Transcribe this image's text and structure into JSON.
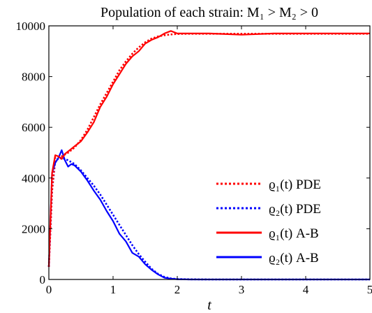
{
  "chart_data": {
    "type": "line",
    "title": "Population of each strain: M₁ > M₂ > 0",
    "xlabel": "t",
    "ylabel": "",
    "xlim": [
      0,
      5
    ],
    "ylim": [
      0,
      10000
    ],
    "x_ticks": [
      0,
      1,
      2,
      3,
      4,
      5
    ],
    "y_ticks": [
      0,
      2000,
      4000,
      6000,
      8000,
      10000
    ],
    "grid": false,
    "legend_position": "bottom-right",
    "series": [
      {
        "name": "ϱ₁(t) PDE",
        "color": "#ff0000",
        "style": "dotted",
        "x": [
          0,
          0.05,
          0.1,
          0.2,
          0.3,
          0.4,
          0.5,
          0.6,
          0.7,
          0.8,
          0.9,
          1.0,
          1.1,
          1.2,
          1.3,
          1.4,
          1.5,
          1.6,
          1.7,
          1.8,
          1.9,
          2.0,
          2.2,
          2.5,
          3.0,
          3.5,
          4.0,
          4.5,
          5.0
        ],
        "y": [
          500,
          3500,
          4800,
          4850,
          5000,
          5200,
          5500,
          5900,
          6400,
          6900,
          7350,
          7800,
          8250,
          8600,
          8900,
          9150,
          9350,
          9500,
          9580,
          9630,
          9660,
          9680,
          9690,
          9690,
          9690,
          9690,
          9690,
          9690,
          9690
        ]
      },
      {
        "name": "ϱ₂(t) PDE",
        "color": "#0000ff",
        "style": "dotted",
        "x": [
          0,
          0.05,
          0.1,
          0.2,
          0.3,
          0.4,
          0.5,
          0.6,
          0.7,
          0.8,
          0.9,
          1.0,
          1.1,
          1.2,
          1.3,
          1.4,
          1.5,
          1.6,
          1.7,
          1.8,
          1.9,
          2.0,
          2.2,
          2.5,
          3.0,
          3.5,
          4.0,
          4.5,
          5.0
        ],
        "y": [
          500,
          3500,
          4700,
          4800,
          4700,
          4550,
          4300,
          4000,
          3700,
          3350,
          2950,
          2550,
          2150,
          1750,
          1350,
          1000,
          700,
          420,
          220,
          100,
          40,
          15,
          5,
          0,
          0,
          0,
          0,
          0,
          0
        ]
      },
      {
        "name": "ϱ₁(t) A-B",
        "color": "#ff0000",
        "style": "solid",
        "x": [
          0,
          0.05,
          0.1,
          0.15,
          0.2,
          0.25,
          0.3,
          0.35,
          0.4,
          0.5,
          0.6,
          0.7,
          0.8,
          0.9,
          1.0,
          1.1,
          1.2,
          1.3,
          1.4,
          1.5,
          1.6,
          1.7,
          1.8,
          1.9,
          2.0,
          2.2,
          2.5,
          3.0,
          3.5,
          4.0,
          4.5,
          5.0
        ],
        "y": [
          500,
          4200,
          4900,
          4850,
          4750,
          4950,
          5050,
          5150,
          5250,
          5450,
          5800,
          6200,
          6800,
          7200,
          7700,
          8100,
          8500,
          8800,
          9000,
          9300,
          9450,
          9550,
          9700,
          9800,
          9700,
          9700,
          9700,
          9650,
          9700,
          9700,
          9700,
          9700
        ]
      },
      {
        "name": "ϱ₂(t) A-B",
        "color": "#0000ff",
        "style": "solid",
        "x": [
          0,
          0.05,
          0.1,
          0.15,
          0.2,
          0.25,
          0.3,
          0.35,
          0.4,
          0.5,
          0.6,
          0.7,
          0.8,
          0.9,
          1.0,
          1.1,
          1.2,
          1.3,
          1.4,
          1.5,
          1.6,
          1.7,
          1.8,
          1.9,
          2.0,
          2.2,
          2.5,
          3.0,
          3.5,
          4.0,
          4.5,
          5.0
        ],
        "y": [
          500,
          4200,
          4600,
          4800,
          5100,
          4700,
          4450,
          4550,
          4500,
          4250,
          3900,
          3500,
          3150,
          2700,
          2300,
          1800,
          1500,
          1050,
          900,
          600,
          380,
          200,
          70,
          30,
          10,
          0,
          0,
          0,
          0,
          0,
          0,
          0
        ]
      }
    ]
  }
}
